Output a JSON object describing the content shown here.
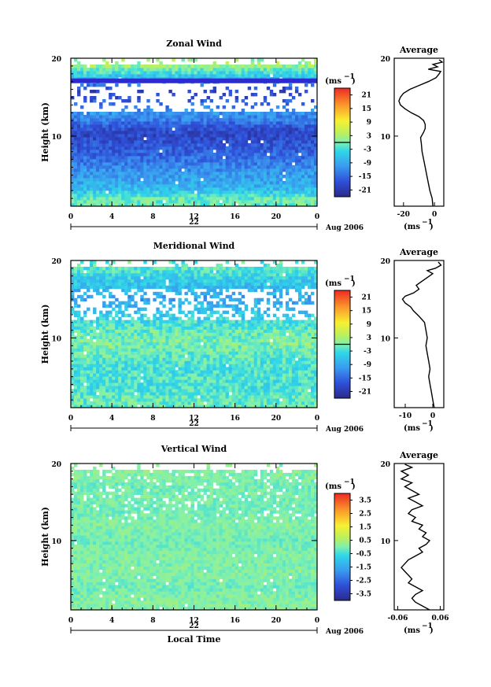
{
  "figure": {
    "x_title": "Local Time",
    "date_label": "Aug 2006",
    "day_label": "22",
    "unit_label": "(ms",
    "unit_exp": "−1",
    "profile_title": "Average",
    "ylabel": "Height (km)",
    "axis_color": "#000000",
    "band_color": "#2b2bd0"
  },
  "chart_data": [
    {
      "type": "heatmap",
      "title": "Zonal Wind",
      "xlabel": "Local Time",
      "ylabel": "Height (km)",
      "x_ticks": [
        "0",
        "4",
        "8",
        "12",
        "16",
        "20",
        "0"
      ],
      "y_ticks": [
        "10",
        "20"
      ],
      "xlim": [
        0,
        24
      ],
      "ylim": [
        1,
        20
      ],
      "colorbar": {
        "label": "(ms−1)",
        "ticks": [
          "21",
          "15",
          "9",
          "3",
          "-3",
          "-9",
          "-15",
          "-21"
        ],
        "range": [
          -24,
          24
        ],
        "zero_line": 0
      },
      "field": [
        {
          "h": 2,
          "v": -1
        },
        {
          "h": 3,
          "v": -6
        },
        {
          "h": 4,
          "v": -9
        },
        {
          "h": 5,
          "v": -10
        },
        {
          "h": 6,
          "v": -12
        },
        {
          "h": 7,
          "v": -14
        },
        {
          "h": 8,
          "v": -16
        },
        {
          "h": 9,
          "v": -17
        },
        {
          "h": 10,
          "v": -19
        },
        {
          "h": 11,
          "v": -18
        },
        {
          "h": 12,
          "v": -13
        },
        {
          "h": 13,
          "v": -11
        },
        {
          "h": 14,
          "v": -14
        },
        {
          "h": 15,
          "v": -18
        },
        {
          "h": 16,
          "v": -19
        },
        {
          "h": 17,
          "v": -10
        },
        {
          "h": 18,
          "v": -4
        },
        {
          "h": 19,
          "v": 2
        }
      ],
      "profile": {
        "xlabel": "(ms−1)",
        "x_ticks": [
          "-20",
          "0"
        ],
        "xlim": [
          -26,
          6
        ],
        "y_ticks": [
          "10",
          "20"
        ],
        "points": [
          {
            "h": 1.0,
            "v": -1
          },
          {
            "h": 2.0,
            "v": -1.5
          },
          {
            "h": 3.0,
            "v": -3
          },
          {
            "h": 4.0,
            "v": -4
          },
          {
            "h": 5.0,
            "v": -5
          },
          {
            "h": 6.0,
            "v": -6
          },
          {
            "h": 7.0,
            "v": -7
          },
          {
            "h": 8.0,
            "v": -8
          },
          {
            "h": 9.0,
            "v": -8.5
          },
          {
            "h": 9.8,
            "v": -9
          },
          {
            "h": 10.5,
            "v": -7
          },
          {
            "h": 11.0,
            "v": -6
          },
          {
            "h": 11.5,
            "v": -6
          },
          {
            "h": 12.0,
            "v": -7
          },
          {
            "h": 12.5,
            "v": -10
          },
          {
            "h": 13.0,
            "v": -15
          },
          {
            "h": 13.5,
            "v": -19
          },
          {
            "h": 14.0,
            "v": -22
          },
          {
            "h": 14.5,
            "v": -23
          },
          {
            "h": 15.0,
            "v": -22
          },
          {
            "h": 15.5,
            "v": -20
          },
          {
            "h": 16.0,
            "v": -16
          },
          {
            "h": 16.5,
            "v": -10
          },
          {
            "h": 17.0,
            "v": -4
          },
          {
            "h": 17.5,
            "v": 1
          },
          {
            "h": 18.0,
            "v": 3
          },
          {
            "h": 18.3,
            "v": 4
          },
          {
            "h": 18.6,
            "v": -4
          },
          {
            "h": 18.9,
            "v": 2
          },
          {
            "h": 19.2,
            "v": -1
          },
          {
            "h": 19.5,
            "v": 5
          },
          {
            "h": 19.8,
            "v": 3
          }
        ]
      }
    },
    {
      "type": "heatmap",
      "title": "Meridional Wind",
      "xlabel": "Local Time",
      "ylabel": "Height (km)",
      "x_ticks": [
        "0",
        "4",
        "8",
        "12",
        "16",
        "20",
        "0"
      ],
      "y_ticks": [
        "10",
        "20"
      ],
      "xlim": [
        0,
        24
      ],
      "ylim": [
        1,
        20
      ],
      "colorbar": {
        "label": "(ms−1)",
        "ticks": [
          "21",
          "15",
          "9",
          "3",
          "-3",
          "-9",
          "-15",
          "-21"
        ],
        "range": [
          -24,
          24
        ],
        "zero_line": 0
      },
      "field": [
        {
          "h": 2,
          "v": -1
        },
        {
          "h": 3,
          "v": -2
        },
        {
          "h": 4,
          "v": -3
        },
        {
          "h": 5,
          "v": -2
        },
        {
          "h": 6,
          "v": -3
        },
        {
          "h": 7,
          "v": -2
        },
        {
          "h": 8,
          "v": -1
        },
        {
          "h": 9,
          "v": 0
        },
        {
          "h": 10,
          "v": 0
        },
        {
          "h": 11,
          "v": -1
        },
        {
          "h": 12,
          "v": -3
        },
        {
          "h": 13,
          "v": -5
        },
        {
          "h": 14,
          "v": -7
        },
        {
          "h": 15,
          "v": -10
        },
        {
          "h": 16,
          "v": -8
        },
        {
          "h": 17,
          "v": -6
        },
        {
          "h": 18,
          "v": -4
        },
        {
          "h": 19,
          "v": -2
        }
      ],
      "profile": {
        "xlabel": "(ms−1)",
        "x_ticks": [
          "-10",
          "0"
        ],
        "xlim": [
          -14,
          4
        ],
        "y_ticks": [
          "10",
          "20"
        ],
        "points": [
          {
            "h": 1.0,
            "v": 0.5
          },
          {
            "h": 2.0,
            "v": 0
          },
          {
            "h": 3.0,
            "v": -0.5
          },
          {
            "h": 4.0,
            "v": -1
          },
          {
            "h": 5.0,
            "v": -1.5
          },
          {
            "h": 6.0,
            "v": -1
          },
          {
            "h": 7.0,
            "v": -1.5
          },
          {
            "h": 8.0,
            "v": -2
          },
          {
            "h": 9.0,
            "v": -2.5
          },
          {
            "h": 10.0,
            "v": -2
          },
          {
            "h": 11.0,
            "v": -2.5
          },
          {
            "h": 12.0,
            "v": -3
          },
          {
            "h": 12.8,
            "v": -5
          },
          {
            "h": 13.5,
            "v": -7
          },
          {
            "h": 14.0,
            "v": -8
          },
          {
            "h": 14.5,
            "v": -10
          },
          {
            "h": 15.0,
            "v": -11
          },
          {
            "h": 15.4,
            "v": -10
          },
          {
            "h": 15.8,
            "v": -7
          },
          {
            "h": 16.3,
            "v": -5
          },
          {
            "h": 16.8,
            "v": -6
          },
          {
            "h": 17.3,
            "v": -4
          },
          {
            "h": 17.8,
            "v": -2
          },
          {
            "h": 18.3,
            "v": 0
          },
          {
            "h": 18.7,
            "v": -2
          },
          {
            "h": 19.0,
            "v": 1
          },
          {
            "h": 19.4,
            "v": 3
          },
          {
            "h": 19.8,
            "v": 2
          }
        ]
      }
    },
    {
      "type": "heatmap",
      "title": "Vertical Wind",
      "xlabel": "Local Time",
      "ylabel": "Height (km)",
      "x_ticks": [
        "0",
        "4",
        "8",
        "12",
        "16",
        "20",
        "0"
      ],
      "y_ticks": [
        "10",
        "20"
      ],
      "xlim": [
        0,
        24
      ],
      "ylim": [
        1,
        20
      ],
      "colorbar": {
        "label": "(ms−1)",
        "ticks": [
          "3.5",
          "2.5",
          "1.5",
          "0.5",
          "-0.5",
          "-1.5",
          "-2.5",
          "-3.5"
        ],
        "range": [
          -4,
          4
        ]
      },
      "field": [
        {
          "h": 2,
          "v": 0.1
        },
        {
          "h": 3,
          "v": 0
        },
        {
          "h": 4,
          "v": -0.1
        },
        {
          "h": 5,
          "v": 0
        },
        {
          "h": 6,
          "v": 0.1
        },
        {
          "h": 7,
          "v": 0
        },
        {
          "h": 8,
          "v": 0.1
        },
        {
          "h": 9,
          "v": 0
        },
        {
          "h": 10,
          "v": -0.1
        },
        {
          "h": 11,
          "v": 0
        },
        {
          "h": 12,
          "v": 0.1
        },
        {
          "h": 13,
          "v": 0
        },
        {
          "h": 14,
          "v": -0.1
        },
        {
          "h": 15,
          "v": 0
        },
        {
          "h": 16,
          "v": 0
        },
        {
          "h": 17,
          "v": -0.1
        },
        {
          "h": 18,
          "v": 0
        },
        {
          "h": 19,
          "v": 0.1
        }
      ],
      "profile": {
        "xlabel": "(ms−1)",
        "x_ticks": [
          "-0.06",
          "0.06"
        ],
        "xlim": [
          -0.07,
          0.07
        ],
        "y_ticks": [
          "10",
          "20"
        ],
        "points": [
          {
            "h": 1.0,
            "v": 0.03
          },
          {
            "h": 1.5,
            "v": 0.01
          },
          {
            "h": 2.0,
            "v": -0.01
          },
          {
            "h": 2.5,
            "v": -0.02
          },
          {
            "h": 3.0,
            "v": -0.01
          },
          {
            "h": 3.5,
            "v": 0.01
          },
          {
            "h": 4.0,
            "v": -0.01
          },
          {
            "h": 4.5,
            "v": -0.03
          },
          {
            "h": 5.0,
            "v": -0.02
          },
          {
            "h": 5.5,
            "v": -0.03
          },
          {
            "h": 6.0,
            "v": -0.04
          },
          {
            "h": 6.5,
            "v": -0.05
          },
          {
            "h": 7.0,
            "v": -0.04
          },
          {
            "h": 7.5,
            "v": -0.03
          },
          {
            "h": 8.0,
            "v": -0.01
          },
          {
            "h": 8.5,
            "v": 0.01
          },
          {
            "h": 9.0,
            "v": 0.0
          },
          {
            "h": 9.5,
            "v": 0.02
          },
          {
            "h": 10.0,
            "v": 0.03
          },
          {
            "h": 10.5,
            "v": 0.01
          },
          {
            "h": 11.0,
            "v": 0.02
          },
          {
            "h": 11.5,
            "v": 0.0
          },
          {
            "h": 12.0,
            "v": 0.01
          },
          {
            "h": 12.5,
            "v": -0.02
          },
          {
            "h": 13.0,
            "v": -0.01
          },
          {
            "h": 13.5,
            "v": -0.03
          },
          {
            "h": 14.0,
            "v": -0.02
          },
          {
            "h": 14.5,
            "v": 0.01
          },
          {
            "h": 15.0,
            "v": -0.01
          },
          {
            "h": 15.5,
            "v": -0.03
          },
          {
            "h": 16.0,
            "v": 0.0
          },
          {
            "h": 16.5,
            "v": -0.02
          },
          {
            "h": 17.0,
            "v": -0.04
          },
          {
            "h": 17.5,
            "v": -0.02
          },
          {
            "h": 18.0,
            "v": -0.05
          },
          {
            "h": 18.5,
            "v": -0.03
          },
          {
            "h": 19.0,
            "v": -0.05
          },
          {
            "h": 19.5,
            "v": -0.02
          },
          {
            "h": 19.9,
            "v": -0.04
          }
        ]
      }
    }
  ]
}
